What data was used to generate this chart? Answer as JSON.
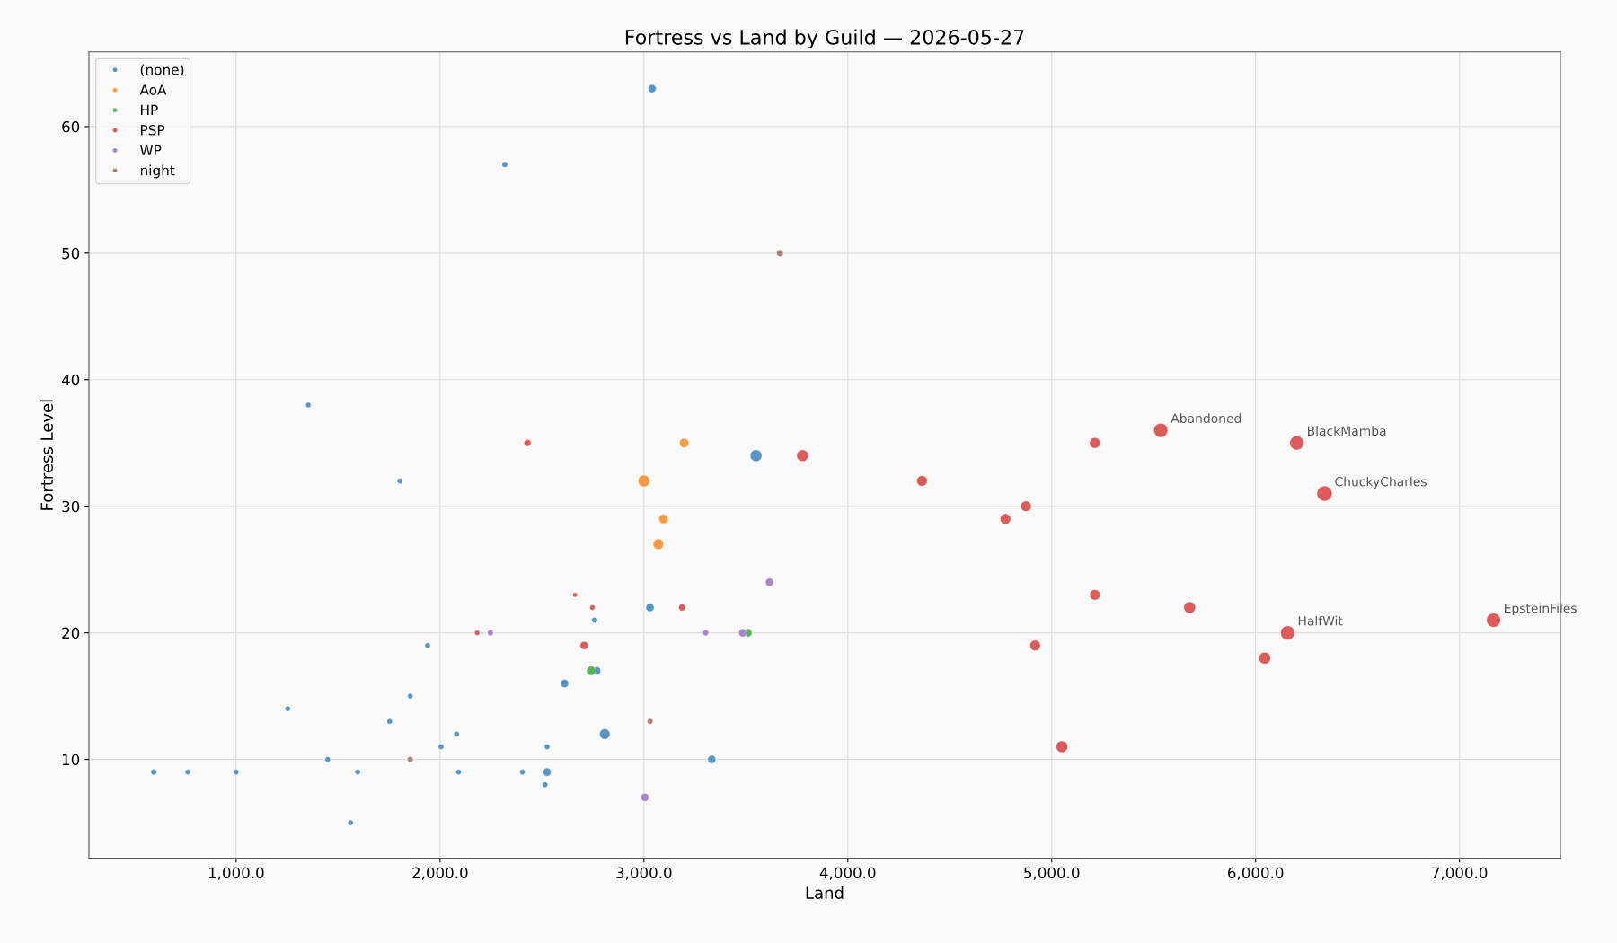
{
  "chart_data": {
    "type": "bubble",
    "title": "Fortress vs Land by Guild — 2026-05-27",
    "xlabel": "Land",
    "ylabel": "Fortress Level",
    "xlim": [
      278,
      7495
    ],
    "ylim": [
      2.2,
      65.9
    ],
    "xticks": [
      {
        "value": 1000,
        "label": "1,000.0"
      },
      {
        "value": 2000,
        "label": "2,000.0"
      },
      {
        "value": 3000,
        "label": "3,000.0"
      },
      {
        "value": 4000,
        "label": "4,000.0"
      },
      {
        "value": 5000,
        "label": "5,000.0"
      },
      {
        "value": 6000,
        "label": "6,000.0"
      },
      {
        "value": 7000,
        "label": "7,000.0"
      }
    ],
    "yticks": [
      10,
      20,
      30,
      40,
      50,
      60
    ],
    "grid": true,
    "legend": "top left",
    "marker": "circle",
    "series": [
      {
        "name": "(none)",
        "color": "#5496c8",
        "x": [
          3040,
          2318,
          1354,
          1803,
          3550,
          3030,
          2758,
          1939,
          2611,
          2768,
          1854,
          1253,
          1753,
          2808,
          2081,
          2005,
          2525,
          3333,
          1449,
          596,
          763,
          1000,
          1596,
          2091,
          2404,
          2525,
          2515,
          1561
        ],
        "values": [
          63,
          57,
          38,
          32,
          34,
          22,
          21,
          19,
          16,
          17,
          15,
          14,
          13,
          12,
          12,
          11,
          11,
          10,
          10,
          9,
          9,
          9,
          9,
          9,
          9,
          9,
          8,
          5
        ],
        "sizes": [
          0.29,
          0.15,
          0.13,
          0.13,
          0.59,
          0.29,
          0.15,
          0.13,
          0.29,
          0.29,
          0.13,
          0.13,
          0.13,
          0.48,
          0.13,
          0.13,
          0.13,
          0.29,
          0.13,
          0.15,
          0.13,
          0.13,
          0.13,
          0.13,
          0.13,
          0.29,
          0.13,
          0.13
        ]
      },
      {
        "name": "AoA",
        "color": "#fd9a44",
        "x": [
          3197,
          3000,
          3096,
          3071
        ],
        "values": [
          35,
          32,
          29,
          27
        ],
        "sizes": [
          0.38,
          0.59,
          0.38,
          0.48
        ]
      },
      {
        "name": "HP",
        "color": "#57b457",
        "x": [
          3510,
          2742
        ],
        "values": [
          20,
          17
        ],
        "sizes": [
          0.29,
          0.38
        ]
      },
      {
        "name": "PSP",
        "color": "#dd5b5b",
        "x": [
          2429,
          3778,
          4364,
          4773,
          4874,
          5212,
          5535,
          6202,
          6338,
          5212,
          5677,
          7167,
          6157,
          6045,
          4919,
          5050,
          2662,
          2747,
          3187,
          2182,
          2707
        ],
        "values": [
          35,
          34,
          32,
          29,
          30,
          35,
          36,
          35,
          31,
          23,
          22,
          21,
          20,
          18,
          19,
          11,
          23,
          22,
          22,
          20,
          19
        ],
        "sizes": [
          0.21,
          0.59,
          0.48,
          0.48,
          0.48,
          0.48,
          0.85,
          0.85,
          1,
          0.48,
          0.59,
          0.85,
          0.85,
          0.59,
          0.48,
          0.59,
          0.1,
          0.12,
          0.21,
          0.12,
          0.29
        ]
      },
      {
        "name": "WP",
        "color": "#a986cc",
        "x": [
          3616,
          2247,
          3303,
          3485,
          3005
        ],
        "values": [
          24,
          20,
          20,
          20,
          7
        ],
        "sizes": [
          0.29,
          0.15,
          0.15,
          0.29,
          0.29
        ]
      },
      {
        "name": "night",
        "color": "#a8837a",
        "x": [
          3667,
          3030,
          1854
        ],
        "values": [
          50,
          13,
          10
        ],
        "sizes": [
          0.21,
          0.15,
          0.15
        ]
      }
    ],
    "annotations": [
      {
        "text": "Abandoned",
        "x": 5535,
        "y": 36
      },
      {
        "text": "BlackMamba",
        "x": 6202,
        "y": 35
      },
      {
        "text": "ChuckyCharles",
        "x": 6338,
        "y": 31
      },
      {
        "text": "HalfWit",
        "x": 6157,
        "y": 20
      },
      {
        "text": "EpsteinFiles",
        "x": 7167,
        "y": 21
      }
    ]
  }
}
